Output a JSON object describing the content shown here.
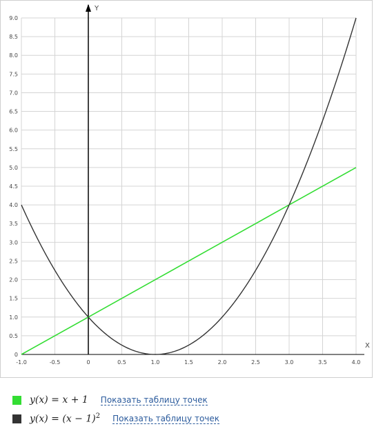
{
  "chart_data": {
    "type": "line",
    "xlabel": "X",
    "ylabel": "Y",
    "xlim": [
      -1.0,
      4.0
    ],
    "ylim": [
      0,
      9.0
    ],
    "x_ticks": [
      -1.0,
      -0.5,
      0,
      0.5,
      1.0,
      1.5,
      2.0,
      2.5,
      3.0,
      3.5,
      4.0
    ],
    "x_tick_labels": [
      "-1.0",
      "-0.5",
      "0",
      "0.5",
      "1.0",
      "1.5",
      "2.0",
      "2.5",
      "3.0",
      "3.5",
      "4.0"
    ],
    "y_ticks": [
      0,
      0.5,
      1.0,
      1.5,
      2.0,
      2.5,
      3.0,
      3.5,
      4.0,
      4.5,
      5.0,
      5.5,
      6.0,
      6.5,
      7.0,
      7.5,
      8.0,
      8.5,
      9.0
    ],
    "y_tick_labels": [
      "0",
      "0.5",
      "1.0",
      "1.5",
      "2.0",
      "2.5",
      "3.0",
      "3.5",
      "4.0",
      "4.5",
      "5.0",
      "5.5",
      "6.0",
      "6.5",
      "7.0",
      "7.5",
      "8.0",
      "8.5",
      "9.0"
    ],
    "grid": true,
    "series": [
      {
        "color": "#33dd33",
        "x": [
          -1.0,
          0,
          1.0,
          2.0,
          3.0,
          4.0
        ],
        "y": [
          0,
          1.0,
          2.0,
          3.0,
          4.0,
          5.0
        ]
      },
      {
        "color": "#333333",
        "x": [
          -1.0,
          -0.75,
          -0.5,
          -0.25,
          0,
          0.25,
          0.5,
          0.75,
          1.0,
          1.25,
          1.5,
          1.75,
          2.0,
          2.25,
          2.5,
          2.75,
          3.0,
          3.25,
          3.5,
          3.75,
          4.0
        ],
        "y": [
          4.0,
          3.0625,
          2.25,
          1.5625,
          1.0,
          0.5625,
          0.25,
          0.0625,
          0,
          0.0625,
          0.25,
          0.5625,
          1.0,
          1.5625,
          2.25,
          3.0625,
          4.0,
          5.0625,
          6.25,
          7.5625,
          9.0
        ]
      }
    ]
  },
  "legend": {
    "items": [
      {
        "formula": "y(x) = x + 1",
        "color": "#33dd33",
        "link": "Показать таблицу точек"
      },
      {
        "formula": "y(x) = (x − 1)",
        "exponent": "2",
        "color": "#333333",
        "link": "Показать таблицу точек"
      }
    ]
  }
}
